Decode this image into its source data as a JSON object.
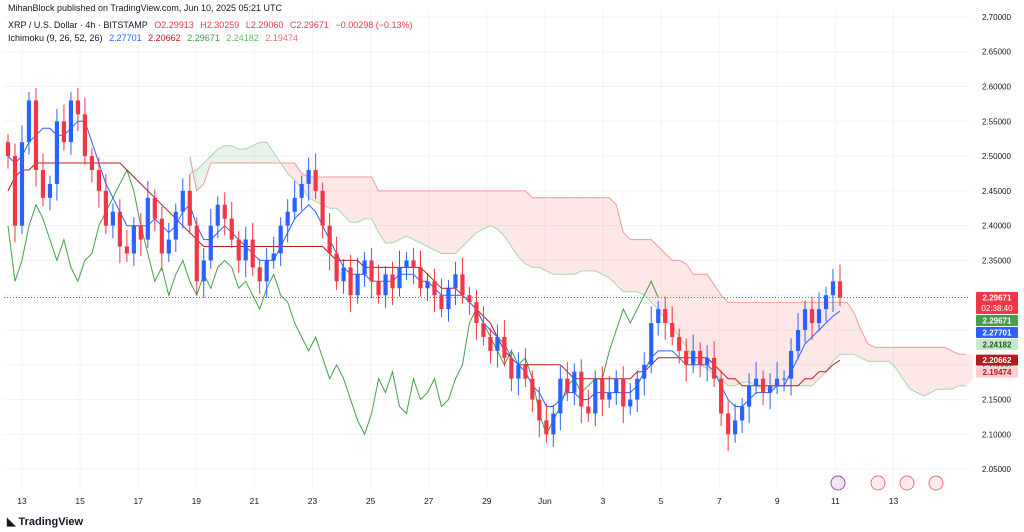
{
  "header": {
    "publisher": "MihanBlock published on TradingView.com, Jun 10, 2025 05:21 UTC",
    "symbol": "XRP / U.S. Dollar · 4h · BITSTAMP",
    "open": "O2.29913",
    "high": "H2.30259",
    "low": "L2.29060",
    "close": "C2.29671",
    "change": "−0.00298 (−0.13%)",
    "indicator_name": "Ichimoku (9, 26, 52, 26)",
    "ind_conversion": "2.27701",
    "ind_base": "2.20662",
    "ind_lagging": "2.29671",
    "ind_spanA": "2.24182",
    "ind_spanB": "2.19474"
  },
  "footer": {
    "logo_text": "TradingView"
  },
  "colors": {
    "up": "#2962ff",
    "down": "#f23645",
    "conversion": "#2962ff",
    "base": "#b71c1c",
    "lagging": "#43a047",
    "spanA": "#a5d6a7",
    "spanB": "#ef9a9a",
    "cloud_bull": "rgba(67,160,71,0.12)",
    "cloud_bear": "rgba(244,67,54,0.12)"
  },
  "chart_data": {
    "type": "candlestick",
    "ylim": [
      2.02,
      2.71
    ],
    "y_ticks": [
      "2.70000",
      "2.65000",
      "2.60000",
      "2.55000",
      "2.50000",
      "2.45000",
      "2.40000",
      "2.35000",
      "2.30000",
      "2.25000",
      "2.20000",
      "2.15000",
      "2.10000",
      "2.05000"
    ],
    "x_ticks": [
      "13",
      "15",
      "17",
      "19",
      "21",
      "23",
      "25",
      "27",
      "29",
      "Jun",
      "3",
      "5",
      "7",
      "9",
      "11",
      "13"
    ],
    "last_price": 2.29671,
    "price_labels": [
      {
        "text": "2.29671",
        "sub": "02:38:40",
        "value": 2.29671,
        "color": "#f23645"
      },
      {
        "text": "2.29671",
        "value": 2.29671,
        "color": "#43a047"
      },
      {
        "text": "2.27701",
        "value": 2.27701,
        "color": "#2962ff"
      },
      {
        "text": "2.24182",
        "value": 2.24182,
        "color": "#c8e6c9",
        "textColor": "#1b5e20"
      },
      {
        "text": "2.20662",
        "value": 2.20662,
        "color": "#b71c1c"
      },
      {
        "text": "2.19474",
        "value": 2.19474,
        "color": "#ffcdd2",
        "textColor": "#b71c1c"
      }
    ],
    "closes": [
      2.5,
      2.4,
      2.52,
      2.58,
      2.48,
      2.44,
      2.46,
      2.55,
      2.52,
      2.58,
      2.56,
      2.5,
      2.48,
      2.45,
      2.4,
      2.42,
      2.37,
      2.36,
      2.4,
      2.38,
      2.44,
      2.41,
      2.36,
      2.38,
      2.42,
      2.45,
      2.4,
      2.32,
      2.35,
      2.4,
      2.43,
      2.41,
      2.38,
      2.35,
      2.38,
      2.34,
      2.32,
      2.35,
      2.36,
      2.4,
      2.42,
      2.44,
      2.46,
      2.48,
      2.45,
      2.4,
      2.36,
      2.32,
      2.34,
      2.3,
      2.33,
      2.35,
      2.32,
      2.3,
      2.33,
      2.31,
      2.34,
      2.35,
      2.34,
      2.31,
      2.32,
      2.3,
      2.28,
      2.31,
      2.33,
      2.3,
      2.29,
      2.26,
      2.24,
      2.22,
      2.24,
      2.21,
      2.18,
      2.2,
      2.18,
      2.15,
      2.12,
      2.1,
      2.13,
      2.18,
      2.16,
      2.19,
      2.14,
      2.13,
      2.18,
      2.15,
      2.16,
      2.18,
      2.14,
      2.15,
      2.18,
      2.2,
      2.26,
      2.28,
      2.26,
      2.24,
      2.22,
      2.2,
      2.22,
      2.2,
      2.21,
      2.18,
      2.13,
      2.1,
      2.12,
      2.14,
      2.17,
      2.18,
      2.16,
      2.17,
      2.18,
      2.18,
      2.22,
      2.25,
      2.28,
      2.26,
      2.28,
      2.3,
      2.32,
      2.29671
    ],
    "conversion": [
      2.5,
      2.49,
      2.5,
      2.52,
      2.53,
      2.54,
      2.54,
      2.53,
      2.53,
      2.54,
      2.55,
      2.55,
      2.52,
      2.49,
      2.46,
      2.44,
      2.42,
      2.4,
      2.4,
      2.4,
      2.4,
      2.41,
      2.4,
      2.39,
      2.4,
      2.42,
      2.43,
      2.4,
      2.38,
      2.38,
      2.39,
      2.4,
      2.39,
      2.38,
      2.37,
      2.36,
      2.35,
      2.35,
      2.35,
      2.37,
      2.39,
      2.41,
      2.42,
      2.43,
      2.42,
      2.4,
      2.38,
      2.36,
      2.34,
      2.33,
      2.33,
      2.33,
      2.32,
      2.32,
      2.32,
      2.32,
      2.33,
      2.33,
      2.33,
      2.32,
      2.32,
      2.31,
      2.3,
      2.3,
      2.3,
      2.3,
      2.29,
      2.28,
      2.26,
      2.25,
      2.24,
      2.23,
      2.21,
      2.2,
      2.19,
      2.17,
      2.16,
      2.14,
      2.14,
      2.15,
      2.16,
      2.16,
      2.15,
      2.15,
      2.16,
      2.16,
      2.16,
      2.16,
      2.16,
      2.16,
      2.17,
      2.19,
      2.21,
      2.22,
      2.22,
      2.22,
      2.21,
      2.2,
      2.2,
      2.2,
      2.2,
      2.19,
      2.17,
      2.15,
      2.14,
      2.14,
      2.15,
      2.16,
      2.16,
      2.16,
      2.17,
      2.17,
      2.19,
      2.21,
      2.23,
      2.24,
      2.25,
      2.26,
      2.27,
      2.27701
    ],
    "base": [
      2.45,
      2.47,
      2.48,
      2.48,
      2.49,
      2.49,
      2.49,
      2.49,
      2.49,
      2.49,
      2.49,
      2.49,
      2.49,
      2.49,
      2.49,
      2.49,
      2.49,
      2.48,
      2.47,
      2.46,
      2.45,
      2.44,
      2.43,
      2.42,
      2.41,
      2.4,
      2.39,
      2.38,
      2.37,
      2.37,
      2.37,
      2.37,
      2.37,
      2.37,
      2.37,
      2.37,
      2.37,
      2.37,
      2.37,
      2.37,
      2.37,
      2.37,
      2.37,
      2.37,
      2.37,
      2.37,
      2.36,
      2.35,
      2.35,
      2.35,
      2.35,
      2.34,
      2.34,
      2.34,
      2.34,
      2.34,
      2.34,
      2.34,
      2.34,
      2.34,
      2.33,
      2.32,
      2.31,
      2.31,
      2.31,
      2.3,
      2.29,
      2.28,
      2.27,
      2.26,
      2.24,
      2.22,
      2.21,
      2.2,
      2.2,
      2.2,
      2.2,
      2.2,
      2.2,
      2.2,
      2.19,
      2.18,
      2.18,
      2.18,
      2.18,
      2.18,
      2.18,
      2.18,
      2.18,
      2.18,
      2.19,
      2.19,
      2.2,
      2.21,
      2.21,
      2.21,
      2.21,
      2.21,
      2.21,
      2.21,
      2.21,
      2.2,
      2.19,
      2.18,
      2.18,
      2.17,
      2.17,
      2.17,
      2.17,
      2.17,
      2.17,
      2.17,
      2.17,
      2.17,
      2.18,
      2.18,
      2.19,
      2.19,
      2.2,
      2.20662
    ]
  }
}
